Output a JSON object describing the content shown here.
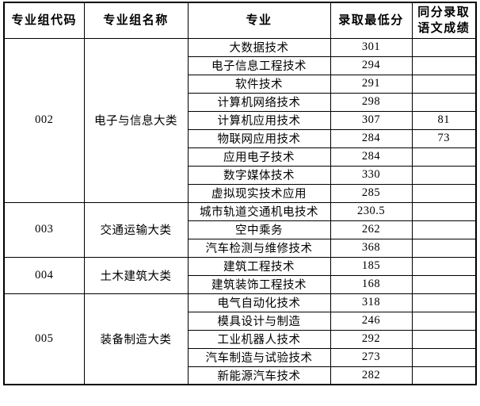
{
  "table": {
    "headers": [
      "专业组代码",
      "专业组名称",
      "专业",
      "录取最低分",
      "同分录取\n语文成绩"
    ],
    "groups": [
      {
        "code": "002",
        "name": "电子与信息大类",
        "majors": [
          {
            "major": "大数据技术",
            "min_score": "301",
            "same_score_chinese": ""
          },
          {
            "major": "电子信息工程技术",
            "min_score": "294",
            "same_score_chinese": ""
          },
          {
            "major": "软件技术",
            "min_score": "291",
            "same_score_chinese": ""
          },
          {
            "major": "计算机网络技术",
            "min_score": "298",
            "same_score_chinese": ""
          },
          {
            "major": "计算机应用技术",
            "min_score": "307",
            "same_score_chinese": "81"
          },
          {
            "major": "物联网应用技术",
            "min_score": "284",
            "same_score_chinese": "73"
          },
          {
            "major": "应用电子技术",
            "min_score": "284",
            "same_score_chinese": ""
          },
          {
            "major": "数字媒体技术",
            "min_score": "330",
            "same_score_chinese": ""
          },
          {
            "major": "虚拟现实技术应用",
            "min_score": "285",
            "same_score_chinese": ""
          }
        ]
      },
      {
        "code": "003",
        "name": "交通运输大类",
        "majors": [
          {
            "major": "城市轨道交通机电技术",
            "min_score": "230.5",
            "same_score_chinese": ""
          },
          {
            "major": "空中乘务",
            "min_score": "262",
            "same_score_chinese": ""
          },
          {
            "major": "汽车检测与维修技术",
            "min_score": "368",
            "same_score_chinese": ""
          }
        ]
      },
      {
        "code": "004",
        "name": "土木建筑大类",
        "majors": [
          {
            "major": "建筑工程技术",
            "min_score": "185",
            "same_score_chinese": ""
          },
          {
            "major": "建筑装饰工程技术",
            "min_score": "168",
            "same_score_chinese": ""
          }
        ]
      },
      {
        "code": "005",
        "name": "装备制造大类",
        "majors": [
          {
            "major": "电气自动化技术",
            "min_score": "318",
            "same_score_chinese": ""
          },
          {
            "major": "模具设计与制造",
            "min_score": "246",
            "same_score_chinese": ""
          },
          {
            "major": "工业机器人技术",
            "min_score": "292",
            "same_score_chinese": ""
          },
          {
            "major": "汽车制造与试验技术",
            "min_score": "273",
            "same_score_chinese": ""
          },
          {
            "major": "新能源汽车技术",
            "min_score": "282",
            "same_score_chinese": ""
          }
        ]
      }
    ]
  }
}
